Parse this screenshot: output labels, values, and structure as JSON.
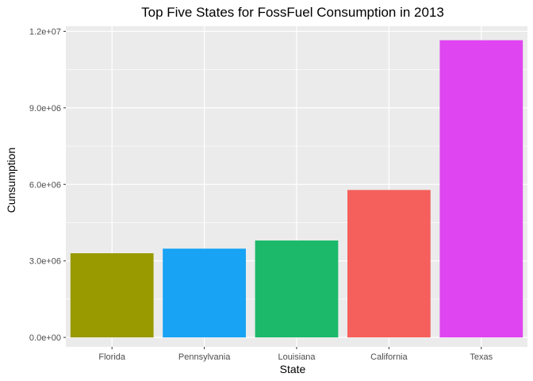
{
  "chart_data": {
    "type": "bar",
    "title": "Top Five States for FossFuel Consumption in 2013",
    "xlabel": "State",
    "ylabel": "Cunsumption",
    "categories": [
      "Florida",
      "Pennsylvania",
      "Louisiana",
      "California",
      "Texas"
    ],
    "values": [
      3300000,
      3480000,
      3800000,
      5780000,
      11650000
    ],
    "colors": [
      "#999900",
      "#18a3f4",
      "#1cb96b",
      "#f5605c",
      "#df45f0"
    ],
    "ylim": [
      -370000,
      12200000
    ],
    "yticks": [
      0,
      3000000,
      6000000,
      9000000,
      12000000
    ],
    "ytick_labels": [
      "0.0e+00",
      "3.0e+06",
      "6.0e+06",
      "9.0e+06",
      "1.2e+07"
    ],
    "grid": true,
    "legend": "none",
    "panel_background": "#ebebeb",
    "grid_color": "#ffffff"
  }
}
